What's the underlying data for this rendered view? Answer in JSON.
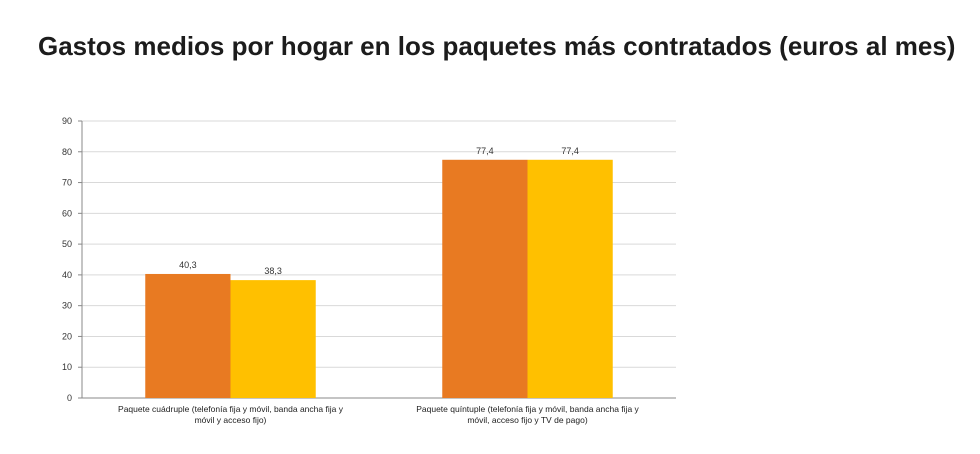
{
  "chart_data": {
    "type": "bar",
    "title": "Gastos medios por hogar en los paquetes más contratados (euros al mes)",
    "categories": [
      [
        "Paquete cuádruple (telefonía fija y móvil, banda ancha fija y",
        "móvil y acceso fijo)"
      ],
      [
        "Paquete quíntuple (telefonía fija y móvil, banda ancha fija y",
        "móvil, acceso fijo y TV de pago)"
      ]
    ],
    "series": [
      {
        "color": "#e87a22",
        "values": [
          40.3,
          77.4
        ],
        "labels": [
          "40,3",
          "77,4"
        ]
      },
      {
        "color": "#ffc000",
        "values": [
          38.3,
          77.4
        ],
        "labels": [
          "38,3",
          "77,4"
        ]
      }
    ],
    "ylim": [
      0,
      90
    ],
    "yticks": [
      0,
      10,
      20,
      30,
      40,
      50,
      60,
      70,
      80,
      90
    ],
    "grid": true,
    "xlabel": "",
    "ylabel": ""
  }
}
